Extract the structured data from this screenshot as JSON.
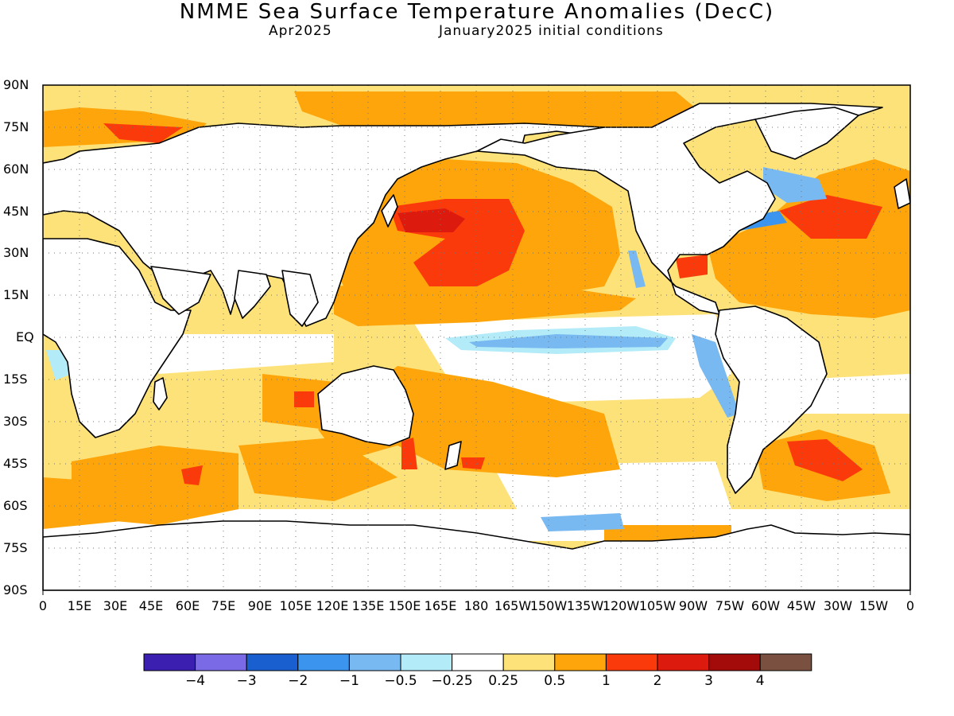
{
  "title": "NMME Sea Surface Temperature Anomalies (DecC)",
  "subtitle_left": "Apr2025",
  "subtitle_right": "January2025 initial conditions",
  "lat_labels": [
    "90N",
    "75N",
    "60N",
    "45N",
    "30N",
    "15N",
    "EQ",
    "15S",
    "30S",
    "45S",
    "60S",
    "75S",
    "90S"
  ],
  "lon_labels": [
    "0",
    "15E",
    "30E",
    "45E",
    "60E",
    "75E",
    "90E",
    "105E",
    "120E",
    "135E",
    "150E",
    "165E",
    "180",
    "165W",
    "150W",
    "135W",
    "120W",
    "105W",
    "90W",
    "75W",
    "60W",
    "45W",
    "30W",
    "15W",
    "0"
  ],
  "colorbar": {
    "colors": [
      "#3a1fb0",
      "#7b6ae6",
      "#1a5fd0",
      "#3b95ef",
      "#78b9f2",
      "#b3ecf8",
      "#ffffff",
      "#fde27a",
      "#fda50a",
      "#fb3a0c",
      "#dc1a0d",
      "#a30a0a",
      "#7a5040"
    ],
    "labels": [
      "−4",
      "−3",
      "−2",
      "−1",
      "−0.5",
      "−0.25",
      "0.25",
      "0.5",
      "1",
      "2",
      "3",
      "4"
    ]
  },
  "map_colors": {
    "land": "#ffffff",
    "ocean_default": "#fde27a",
    "coast": "#000000",
    "grid": "#777777"
  }
}
